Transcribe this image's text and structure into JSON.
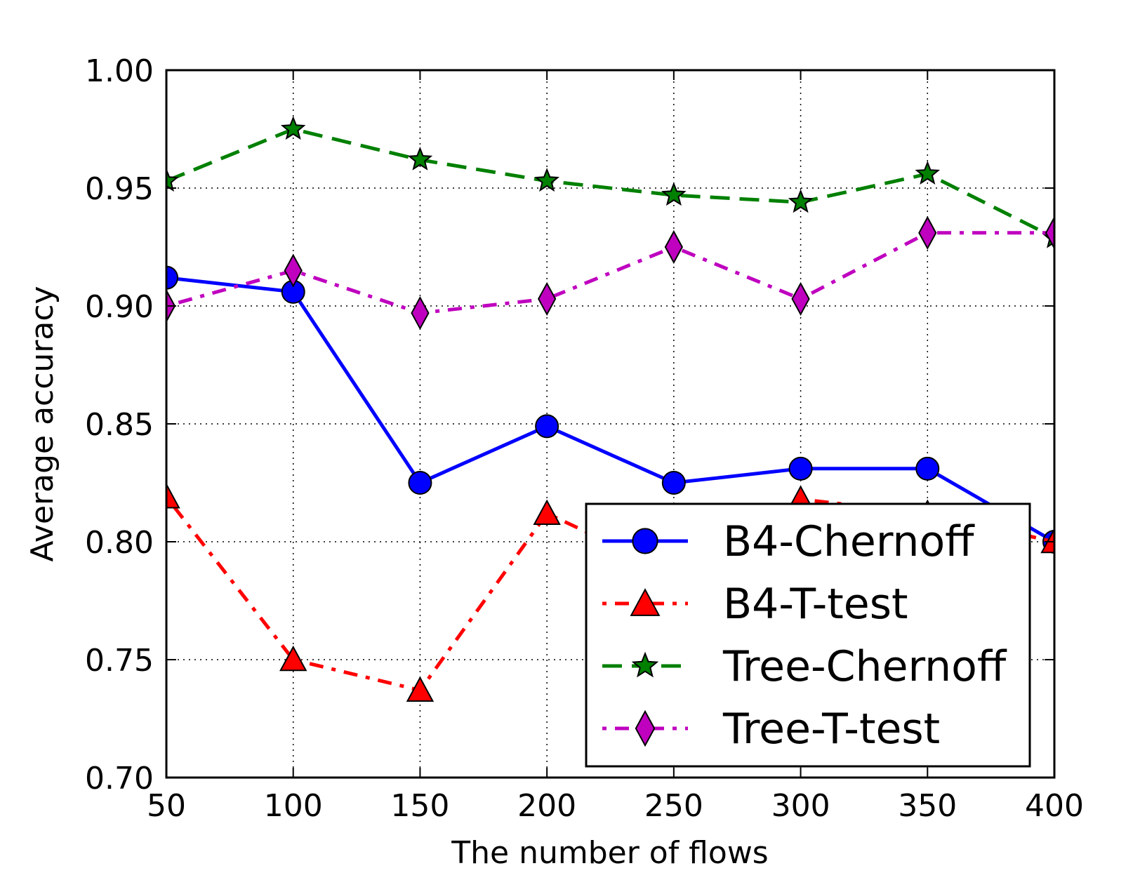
{
  "chart_data": {
    "type": "line",
    "title": "",
    "xlabel": "The number of flows",
    "ylabel": "Average accuracy",
    "x": [
      50,
      100,
      150,
      200,
      250,
      300,
      350,
      400
    ],
    "xlim": [
      50,
      400
    ],
    "ylim": [
      0.7,
      1.0
    ],
    "xticks": [
      "50",
      "100",
      "150",
      "200",
      "250",
      "300",
      "350",
      "400"
    ],
    "yticks": [
      "0.70",
      "0.75",
      "0.80",
      "0.85",
      "0.90",
      "0.95",
      "1.00"
    ],
    "grid": true,
    "legend_position": "lower-right",
    "series": [
      {
        "name": "B4-Chernoff",
        "values": [
          0.912,
          0.906,
          0.825,
          0.849,
          0.825,
          0.831,
          0.831,
          0.8
        ],
        "color": "#0000ff",
        "marker": "circle",
        "linestyle": "solid"
      },
      {
        "name": "B4-T-test",
        "values": [
          0.819,
          0.75,
          0.737,
          0.812,
          0.787,
          0.818,
          0.812,
          0.8
        ],
        "color": "#ff0000",
        "marker": "triangle",
        "linestyle": "dashdot"
      },
      {
        "name": "Tree-Chernoff",
        "values": [
          0.953,
          0.975,
          0.962,
          0.953,
          0.947,
          0.944,
          0.956,
          0.929
        ],
        "color": "#008000",
        "marker": "star",
        "linestyle": "dashed"
      },
      {
        "name": "Tree-T-test",
        "values": [
          0.9,
          0.915,
          0.897,
          0.903,
          0.925,
          0.903,
          0.931,
          0.931
        ],
        "color": "#bf00bf",
        "marker": "diamond",
        "linestyle": "dashdot"
      }
    ]
  }
}
